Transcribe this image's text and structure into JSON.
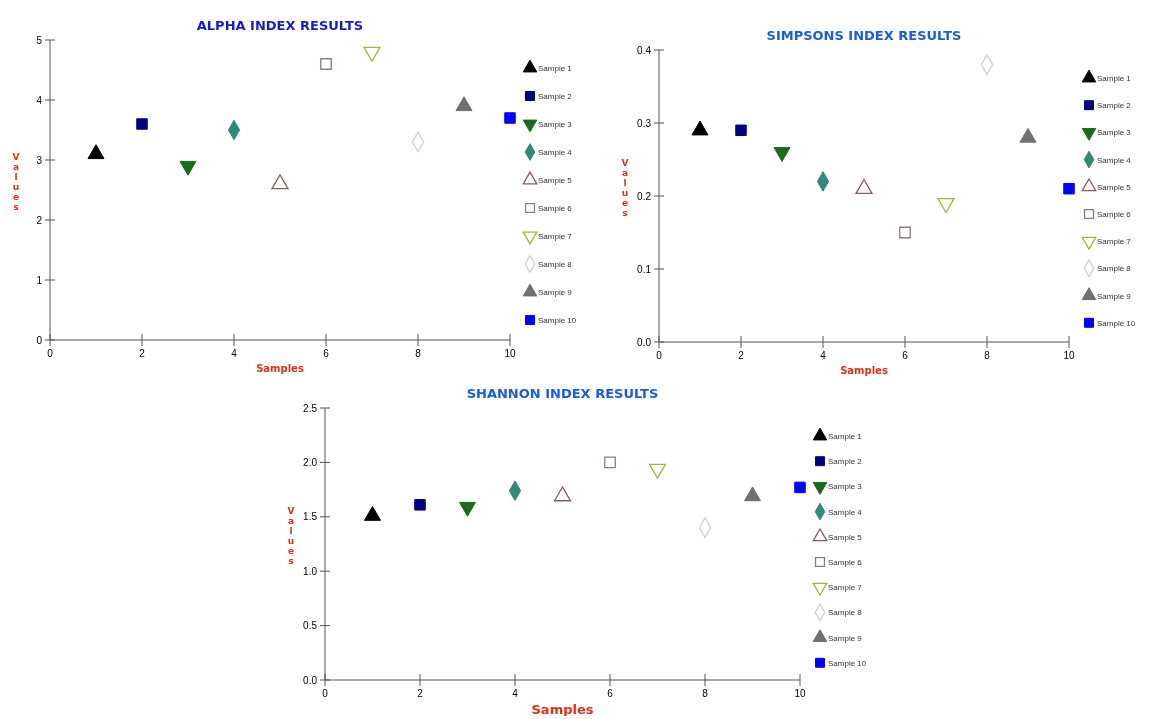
{
  "chart_data": [
    {
      "type": "scatter",
      "title": "ALPHA INDEX RESULTS",
      "xlabel": "Samples",
      "ylabel": "Values",
      "xlim": [
        0,
        10
      ],
      "xticks": [
        0,
        2,
        4,
        6,
        8,
        10
      ],
      "ylim": [
        0,
        5
      ],
      "yticks": [
        0,
        1,
        2,
        3,
        4,
        5
      ],
      "legend": "right",
      "series": [
        {
          "name": "Sample 1",
          "color": "#000000",
          "marker": "triangle",
          "x": [
            1
          ],
          "values": [
            3.1
          ]
        },
        {
          "name": "Sample 2",
          "color": "#000080",
          "marker": "square",
          "x": [
            2
          ],
          "values": [
            3.6
          ]
        },
        {
          "name": "Sample 3",
          "color": "#1a6b1a",
          "marker": "triangle-down",
          "x": [
            3
          ],
          "values": [
            2.9
          ]
        },
        {
          "name": "Sample 4",
          "color": "#2e8b7a",
          "marker": "diamond",
          "x": [
            4
          ],
          "values": [
            3.5
          ]
        },
        {
          "name": "Sample 5",
          "color": "#8b5a5a",
          "marker": "triangle-open",
          "x": [
            5
          ],
          "values": [
            2.6
          ]
        },
        {
          "name": "Sample 6",
          "color": "#8a7a8a",
          "marker": "square-open",
          "x": [
            6
          ],
          "values": [
            4.6
          ]
        },
        {
          "name": "Sample 7",
          "color": "#a8b040",
          "marker": "triangle-down-open",
          "x": [
            7
          ],
          "values": [
            4.8
          ]
        },
        {
          "name": "Sample 8",
          "color": "#d0d0d0",
          "marker": "diamond-open",
          "x": [
            8
          ],
          "values": [
            3.3
          ]
        },
        {
          "name": "Sample 9",
          "color": "#707070",
          "marker": "triangle",
          "x": [
            9
          ],
          "values": [
            3.9
          ]
        },
        {
          "name": "Sample 10",
          "color": "#0000ff",
          "marker": "square",
          "x": [
            10
          ],
          "values": [
            3.7
          ]
        }
      ]
    },
    {
      "type": "scatter",
      "title": "SIMPSONS INDEX RESULTS",
      "xlabel": "Samples",
      "ylabel": "Values",
      "xlim": [
        0,
        10
      ],
      "xticks": [
        0,
        2,
        4,
        6,
        8,
        10
      ],
      "ylim": [
        0,
        0.4
      ],
      "yticks": [
        {
          "value": 0,
          "label": "0.0"
        },
        0.1,
        0.2,
        0.3,
        0.4
      ],
      "legend": "right",
      "series": [
        {
          "name": "Sample 1",
          "color": "#000000",
          "marker": "triangle",
          "x": [
            1
          ],
          "values": [
            0.29
          ]
        },
        {
          "name": "Sample 2",
          "color": "#000080",
          "marker": "square",
          "x": [
            2
          ],
          "values": [
            0.29
          ]
        },
        {
          "name": "Sample 3",
          "color": "#1a6b1a",
          "marker": "triangle-down",
          "x": [
            3
          ],
          "values": [
            0.26
          ]
        },
        {
          "name": "Sample 4",
          "color": "#2e8b7a",
          "marker": "diamond",
          "x": [
            4
          ],
          "values": [
            0.22
          ]
        },
        {
          "name": "Sample 5",
          "color": "#8b5a5a",
          "marker": "triangle-open",
          "x": [
            5
          ],
          "values": [
            0.21
          ]
        },
        {
          "name": "Sample 6",
          "color": "#8a7a8a",
          "marker": "square-open",
          "x": [
            6
          ],
          "values": [
            0.15
          ]
        },
        {
          "name": "Sample 7",
          "color": "#a8b040",
          "marker": "triangle-down-open",
          "x": [
            7
          ],
          "values": [
            0.19
          ]
        },
        {
          "name": "Sample 8",
          "color": "#d0d0d0",
          "marker": "diamond-open",
          "x": [
            8
          ],
          "values": [
            0.38
          ]
        },
        {
          "name": "Sample 9",
          "color": "#707070",
          "marker": "triangle",
          "x": [
            9
          ],
          "values": [
            0.28
          ]
        },
        {
          "name": "Sample 10",
          "color": "#0000ff",
          "marker": "square",
          "x": [
            10
          ],
          "values": [
            0.21
          ]
        }
      ]
    },
    {
      "type": "scatter",
      "title": "SHANNON INDEX RESULTS",
      "xlabel": "Samples",
      "ylabel": "Values",
      "xlim": [
        0,
        10
      ],
      "xticks": [
        0,
        2,
        4,
        6,
        8,
        10
      ],
      "ylim": [
        0,
        2.5
      ],
      "yticks": [
        {
          "value": 0,
          "label": "0.0"
        },
        0.5,
        {
          "value": 1,
          "label": "1.0"
        },
        1.5,
        {
          "value": 2,
          "label": "2.0"
        },
        2.5
      ],
      "legend": "right",
      "series": [
        {
          "name": "Sample 1",
          "color": "#000000",
          "marker": "triangle",
          "x": [
            1
          ],
          "values": [
            1.51
          ]
        },
        {
          "name": "Sample 2",
          "color": "#000080",
          "marker": "square",
          "x": [
            2
          ],
          "values": [
            1.61
          ]
        },
        {
          "name": "Sample 3",
          "color": "#1a6b1a",
          "marker": "triangle-down",
          "x": [
            3
          ],
          "values": [
            1.59
          ]
        },
        {
          "name": "Sample 4",
          "color": "#2e8b7a",
          "marker": "diamond",
          "x": [
            4
          ],
          "values": [
            1.74
          ]
        },
        {
          "name": "Sample 5",
          "color": "#8b5a5a",
          "marker": "triangle-open",
          "x": [
            5
          ],
          "values": [
            1.69
          ]
        },
        {
          "name": "Sample 6",
          "color": "#8a7a8a",
          "marker": "square-open",
          "x": [
            6
          ],
          "values": [
            2.0
          ]
        },
        {
          "name": "Sample 7",
          "color": "#a8b040",
          "marker": "triangle-down-open",
          "x": [
            7
          ],
          "values": [
            1.94
          ]
        },
        {
          "name": "Sample 8",
          "color": "#d0d0d0",
          "marker": "diamond-open",
          "x": [
            8
          ],
          "values": [
            1.4
          ]
        },
        {
          "name": "Sample 9",
          "color": "#707070",
          "marker": "triangle",
          "x": [
            9
          ],
          "values": [
            1.69
          ]
        },
        {
          "name": "Sample 10",
          "color": "#0000ff",
          "marker": "square",
          "x": [
            10
          ],
          "values": [
            1.77
          ]
        }
      ]
    }
  ]
}
